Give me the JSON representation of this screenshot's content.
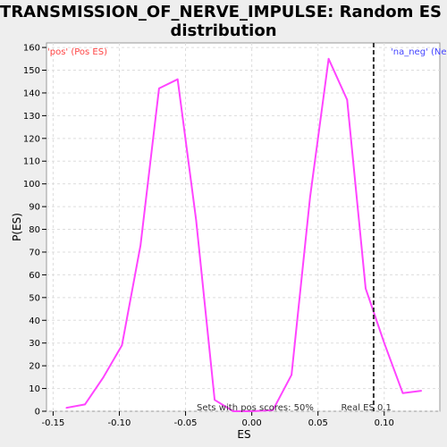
{
  "chart_data": {
    "type": "line",
    "title_line1": "TRANSMISSION_OF_NERVE_IMPULSE: Random ES",
    "title_line2": "distribution",
    "xlabel": "ES",
    "ylabel": "P(ES)",
    "xlim": [
      -0.155,
      0.142
    ],
    "ylim": [
      0,
      162
    ],
    "x_ticks": [
      -0.15,
      -0.1,
      -0.05,
      0.0,
      0.05,
      0.1
    ],
    "x_tick_labels": [
      "-0.15",
      "-0.10",
      "-0.05",
      "0.00",
      "0.05",
      "0.10"
    ],
    "y_ticks": [
      0,
      10,
      20,
      30,
      40,
      50,
      60,
      70,
      80,
      90,
      100,
      110,
      120,
      130,
      140,
      150,
      160
    ],
    "y_tick_labels": [
      "0",
      "10",
      "20",
      "30",
      "40",
      "50",
      "60",
      "70",
      "80",
      "90",
      "100",
      "110",
      "120",
      "130",
      "140",
      "150",
      "160"
    ],
    "grid": true,
    "series": [
      {
        "color": "#ff44ff",
        "x": [
          -0.14,
          -0.126,
          -0.112,
          -0.098,
          -0.084,
          -0.07,
          -0.056,
          -0.042,
          -0.028,
          -0.014,
          0.0,
          0.016,
          0.03,
          0.044,
          0.058,
          0.072,
          0.086,
          0.1,
          0.114,
          0.128
        ],
        "y": [
          1.5,
          3,
          15,
          29,
          73,
          142,
          146,
          84,
          5,
          0,
          0,
          0.5,
          16,
          94,
          155,
          137,
          54,
          30,
          8,
          9
        ]
      }
    ],
    "real_es": {
      "x": 0.092,
      "label": "Real ES 0.1",
      "color": "#333333"
    },
    "annotations": {
      "pos_label": "'pos' (Pos ES)",
      "pos_color": "#ff4444",
      "neg_label": "'na_neg' (Ne",
      "neg_color": "#4444ff",
      "pos_score": "Sets with pos scores: 50%"
    }
  }
}
